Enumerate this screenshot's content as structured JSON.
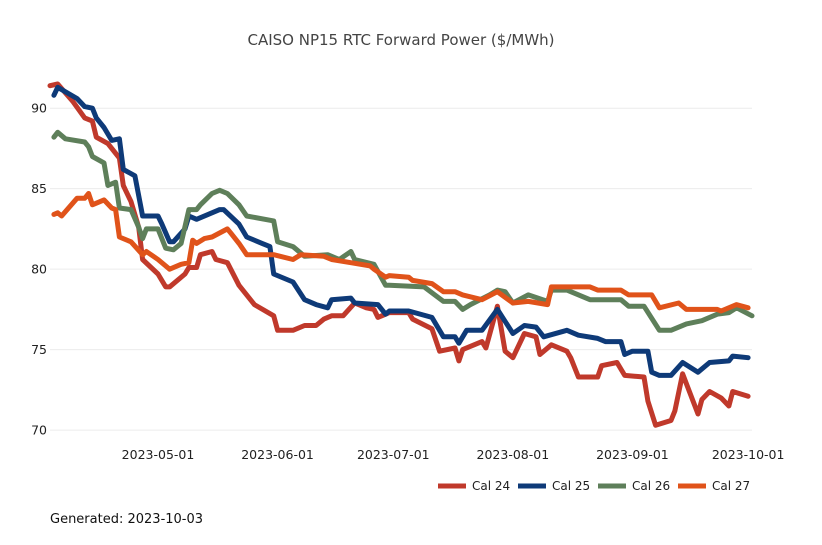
{
  "chart_data": {
    "type": "line",
    "title": "CAISO NP15 RTC Forward Power ($/MWh)",
    "xlabel": "",
    "ylabel": "",
    "xlim": [
      "2023-04-03",
      "2023-10-02"
    ],
    "ylim": [
      69.2,
      92
    ],
    "x_ticks": [
      "2023-05-01",
      "2023-06-01",
      "2023-07-01",
      "2023-08-01",
      "2023-09-01",
      "2023-10-01"
    ],
    "y_ticks": [
      70,
      75,
      80,
      85,
      90
    ],
    "grid": "horizontal",
    "legend_position": "bottom-right",
    "series": [
      {
        "name": "Cal 24",
        "color": "#c0392b",
        "points": [
          [
            "2023-04-03",
            91.4
          ],
          [
            "2023-04-05",
            91.5
          ],
          [
            "2023-04-09",
            90.4
          ],
          [
            "2023-04-12",
            89.4
          ],
          [
            "2023-04-14",
            89.2
          ],
          [
            "2023-04-15",
            88.2
          ],
          [
            "2023-04-18",
            87.8
          ],
          [
            "2023-04-21",
            86.9
          ],
          [
            "2023-04-22",
            85.2
          ],
          [
            "2023-04-24",
            84.2
          ],
          [
            "2023-04-26",
            82.6
          ],
          [
            "2023-04-27",
            80.6
          ],
          [
            "2023-05-01",
            79.7
          ],
          [
            "2023-05-03",
            78.9
          ],
          [
            "2023-05-04",
            78.9
          ],
          [
            "2023-05-08",
            79.7
          ],
          [
            "2023-05-09",
            80.1
          ],
          [
            "2023-05-11",
            80.1
          ],
          [
            "2023-05-12",
            80.9
          ],
          [
            "2023-05-15",
            81.1
          ],
          [
            "2023-05-16",
            80.6
          ],
          [
            "2023-05-19",
            80.4
          ],
          [
            "2023-05-22",
            79.0
          ],
          [
            "2023-05-26",
            77.8
          ],
          [
            "2023-05-31",
            77.1
          ],
          [
            "2023-06-01",
            76.2
          ],
          [
            "2023-06-05",
            76.2
          ],
          [
            "2023-06-08",
            76.5
          ],
          [
            "2023-06-11",
            76.5
          ],
          [
            "2023-06-13",
            76.9
          ],
          [
            "2023-06-15",
            77.1
          ],
          [
            "2023-06-18",
            77.1
          ],
          [
            "2023-06-21",
            77.9
          ],
          [
            "2023-06-24",
            77.6
          ],
          [
            "2023-06-26",
            77.5
          ],
          [
            "2023-06-27",
            77.0
          ],
          [
            "2023-06-30",
            77.3
          ],
          [
            "2023-07-05",
            77.3
          ],
          [
            "2023-07-06",
            76.9
          ],
          [
            "2023-07-11",
            76.3
          ],
          [
            "2023-07-13",
            74.9
          ],
          [
            "2023-07-17",
            75.1
          ],
          [
            "2023-07-18",
            74.3
          ],
          [
            "2023-07-19",
            75.0
          ],
          [
            "2023-07-24",
            75.5
          ],
          [
            "2023-07-25",
            75.1
          ],
          [
            "2023-07-28",
            77.7
          ],
          [
            "2023-07-30",
            74.9
          ],
          [
            "2023-08-01",
            74.5
          ],
          [
            "2023-08-04",
            76.0
          ],
          [
            "2023-08-07",
            75.8
          ],
          [
            "2023-08-08",
            74.7
          ],
          [
            "2023-08-11",
            75.3
          ],
          [
            "2023-08-15",
            74.9
          ],
          [
            "2023-08-16",
            74.5
          ],
          [
            "2023-08-18",
            73.3
          ],
          [
            "2023-08-23",
            73.3
          ],
          [
            "2023-08-24",
            74.0
          ],
          [
            "2023-08-28",
            74.2
          ],
          [
            "2023-08-30",
            73.4
          ],
          [
            "2023-09-04",
            73.3
          ],
          [
            "2023-09-05",
            71.8
          ],
          [
            "2023-09-07",
            70.3
          ],
          [
            "2023-09-11",
            70.6
          ],
          [
            "2023-09-12",
            71.2
          ],
          [
            "2023-09-14",
            73.5
          ],
          [
            "2023-09-18",
            71.0
          ],
          [
            "2023-09-19",
            71.9
          ],
          [
            "2023-09-21",
            72.4
          ],
          [
            "2023-09-24",
            72.0
          ],
          [
            "2023-09-26",
            71.5
          ],
          [
            "2023-09-27",
            72.4
          ],
          [
            "2023-10-01",
            72.1
          ]
        ]
      },
      {
        "name": "Cal 25",
        "color": "#0e3a78",
        "points": [
          [
            "2023-04-04",
            90.8
          ],
          [
            "2023-04-05",
            91.3
          ],
          [
            "2023-04-10",
            90.6
          ],
          [
            "2023-04-12",
            90.1
          ],
          [
            "2023-04-14",
            90.0
          ],
          [
            "2023-04-15",
            89.4
          ],
          [
            "2023-04-17",
            88.8
          ],
          [
            "2023-04-19",
            88.0
          ],
          [
            "2023-04-21",
            88.1
          ],
          [
            "2023-04-22",
            86.2
          ],
          [
            "2023-04-25",
            85.8
          ],
          [
            "2023-04-27",
            83.3
          ],
          [
            "2023-05-01",
            83.3
          ],
          [
            "2023-05-02",
            82.8
          ],
          [
            "2023-05-04",
            81.7
          ],
          [
            "2023-05-05",
            81.7
          ],
          [
            "2023-05-08",
            82.5
          ],
          [
            "2023-05-09",
            83.3
          ],
          [
            "2023-05-11",
            83.1
          ],
          [
            "2023-05-17",
            83.7
          ],
          [
            "2023-05-18",
            83.7
          ],
          [
            "2023-05-22",
            82.8
          ],
          [
            "2023-05-24",
            82.0
          ],
          [
            "2023-05-28",
            81.6
          ],
          [
            "2023-05-30",
            81.4
          ],
          [
            "2023-05-31",
            79.7
          ],
          [
            "2023-06-05",
            79.2
          ],
          [
            "2023-06-08",
            78.1
          ],
          [
            "2023-06-11",
            77.8
          ],
          [
            "2023-06-14",
            77.6
          ],
          [
            "2023-06-15",
            78.1
          ],
          [
            "2023-06-20",
            78.2
          ],
          [
            "2023-06-21",
            77.9
          ],
          [
            "2023-06-27",
            77.8
          ],
          [
            "2023-06-29",
            77.2
          ],
          [
            "2023-06-30",
            77.4
          ],
          [
            "2023-07-05",
            77.4
          ],
          [
            "2023-07-11",
            77.0
          ],
          [
            "2023-07-14",
            75.8
          ],
          [
            "2023-07-17",
            75.8
          ],
          [
            "2023-07-18",
            75.4
          ],
          [
            "2023-07-20",
            76.2
          ],
          [
            "2023-07-24",
            76.2
          ],
          [
            "2023-07-28",
            77.5
          ],
          [
            "2023-08-01",
            76.0
          ],
          [
            "2023-08-04",
            76.5
          ],
          [
            "2023-08-07",
            76.4
          ],
          [
            "2023-08-09",
            75.8
          ],
          [
            "2023-08-15",
            76.2
          ],
          [
            "2023-08-18",
            75.9
          ],
          [
            "2023-08-23",
            75.7
          ],
          [
            "2023-08-25",
            75.5
          ],
          [
            "2023-08-29",
            75.5
          ],
          [
            "2023-08-30",
            74.7
          ],
          [
            "2023-09-01",
            74.9
          ],
          [
            "2023-09-05",
            74.9
          ],
          [
            "2023-09-06",
            73.6
          ],
          [
            "2023-09-08",
            73.4
          ],
          [
            "2023-09-11",
            73.4
          ],
          [
            "2023-09-14",
            74.2
          ],
          [
            "2023-09-18",
            73.6
          ],
          [
            "2023-09-21",
            74.2
          ],
          [
            "2023-09-26",
            74.3
          ],
          [
            "2023-09-27",
            74.6
          ],
          [
            "2023-10-01",
            74.5
          ]
        ]
      },
      {
        "name": "Cal 26",
        "color": "#5e7f5a",
        "points": [
          [
            "2023-04-04",
            88.2
          ],
          [
            "2023-04-05",
            88.5
          ],
          [
            "2023-04-07",
            88.1
          ],
          [
            "2023-04-12",
            87.9
          ],
          [
            "2023-04-13",
            87.6
          ],
          [
            "2023-04-14",
            87.0
          ],
          [
            "2023-04-17",
            86.6
          ],
          [
            "2023-04-18",
            85.2
          ],
          [
            "2023-04-20",
            85.4
          ],
          [
            "2023-04-21",
            83.8
          ],
          [
            "2023-04-24",
            83.7
          ],
          [
            "2023-04-26",
            82.6
          ],
          [
            "2023-04-27",
            81.9
          ],
          [
            "2023-04-28",
            82.5
          ],
          [
            "2023-05-01",
            82.5
          ],
          [
            "2023-05-03",
            81.3
          ],
          [
            "2023-05-05",
            81.2
          ],
          [
            "2023-05-07",
            81.6
          ],
          [
            "2023-05-09",
            83.7
          ],
          [
            "2023-05-11",
            83.7
          ],
          [
            "2023-05-12",
            84.0
          ],
          [
            "2023-05-15",
            84.7
          ],
          [
            "2023-05-17",
            84.9
          ],
          [
            "2023-05-19",
            84.7
          ],
          [
            "2023-05-22",
            84.0
          ],
          [
            "2023-05-24",
            83.3
          ],
          [
            "2023-05-31",
            83.0
          ],
          [
            "2023-06-01",
            81.7
          ],
          [
            "2023-06-05",
            81.4
          ],
          [
            "2023-06-08",
            80.8
          ],
          [
            "2023-06-14",
            80.9
          ],
          [
            "2023-06-17",
            80.6
          ],
          [
            "2023-06-20",
            81.1
          ],
          [
            "2023-06-21",
            80.6
          ],
          [
            "2023-06-26",
            80.3
          ],
          [
            "2023-06-29",
            79.0
          ],
          [
            "2023-06-30",
            79.0
          ],
          [
            "2023-07-09",
            78.9
          ],
          [
            "2023-07-14",
            78.0
          ],
          [
            "2023-07-17",
            78.0
          ],
          [
            "2023-07-19",
            77.5
          ],
          [
            "2023-07-21",
            77.8
          ],
          [
            "2023-07-26",
            78.4
          ],
          [
            "2023-07-28",
            78.7
          ],
          [
            "2023-07-30",
            78.6
          ],
          [
            "2023-08-01",
            77.9
          ],
          [
            "2023-08-05",
            78.4
          ],
          [
            "2023-08-10",
            78.0
          ],
          [
            "2023-08-11",
            78.7
          ],
          [
            "2023-08-15",
            78.7
          ],
          [
            "2023-08-21",
            78.1
          ],
          [
            "2023-08-29",
            78.1
          ],
          [
            "2023-08-31",
            77.7
          ],
          [
            "2023-09-04",
            77.7
          ],
          [
            "2023-09-08",
            76.2
          ],
          [
            "2023-09-11",
            76.2
          ],
          [
            "2023-09-15",
            76.6
          ],
          [
            "2023-09-19",
            76.8
          ],
          [
            "2023-09-23",
            77.2
          ],
          [
            "2023-09-26",
            77.3
          ],
          [
            "2023-09-28",
            77.6
          ],
          [
            "2023-10-02",
            77.1
          ]
        ]
      },
      {
        "name": "Cal 27",
        "color": "#e0531a",
        "points": [
          [
            "2023-04-04",
            83.4
          ],
          [
            "2023-04-05",
            83.5
          ],
          [
            "2023-04-06",
            83.3
          ],
          [
            "2023-04-10",
            84.4
          ],
          [
            "2023-04-12",
            84.4
          ],
          [
            "2023-04-13",
            84.7
          ],
          [
            "2023-04-14",
            84.0
          ],
          [
            "2023-04-17",
            84.3
          ],
          [
            "2023-04-19",
            83.8
          ],
          [
            "2023-04-20",
            83.7
          ],
          [
            "2023-04-21",
            82.0
          ],
          [
            "2023-04-24",
            81.7
          ],
          [
            "2023-04-27",
            80.9
          ],
          [
            "2023-04-28",
            81.1
          ],
          [
            "2023-05-01",
            80.6
          ],
          [
            "2023-05-04",
            80.0
          ],
          [
            "2023-05-07",
            80.3
          ],
          [
            "2023-05-09",
            80.4
          ],
          [
            "2023-05-10",
            81.8
          ],
          [
            "2023-05-11",
            81.6
          ],
          [
            "2023-05-13",
            81.9
          ],
          [
            "2023-05-15",
            82.0
          ],
          [
            "2023-05-19",
            82.5
          ],
          [
            "2023-05-20",
            82.2
          ],
          [
            "2023-05-22",
            81.6
          ],
          [
            "2023-05-24",
            80.9
          ],
          [
            "2023-05-31",
            80.9
          ],
          [
            "2023-06-05",
            80.6
          ],
          [
            "2023-06-07",
            80.9
          ],
          [
            "2023-06-13",
            80.8
          ],
          [
            "2023-06-15",
            80.6
          ],
          [
            "2023-06-20",
            80.4
          ],
          [
            "2023-06-25",
            80.2
          ],
          [
            "2023-06-26",
            80.0
          ],
          [
            "2023-06-29",
            79.5
          ],
          [
            "2023-06-30",
            79.6
          ],
          [
            "2023-07-05",
            79.5
          ],
          [
            "2023-07-06",
            79.3
          ],
          [
            "2023-07-11",
            79.1
          ],
          [
            "2023-07-14",
            78.6
          ],
          [
            "2023-07-17",
            78.6
          ],
          [
            "2023-07-19",
            78.4
          ],
          [
            "2023-07-24",
            78.1
          ],
          [
            "2023-07-28",
            78.6
          ],
          [
            "2023-08-01",
            77.9
          ],
          [
            "2023-08-05",
            78.0
          ],
          [
            "2023-08-10",
            77.8
          ],
          [
            "2023-08-11",
            78.9
          ],
          [
            "2023-08-21",
            78.9
          ],
          [
            "2023-08-23",
            78.7
          ],
          [
            "2023-08-29",
            78.7
          ],
          [
            "2023-08-31",
            78.4
          ],
          [
            "2023-09-06",
            78.4
          ],
          [
            "2023-09-08",
            77.6
          ],
          [
            "2023-09-13",
            77.9
          ],
          [
            "2023-09-15",
            77.5
          ],
          [
            "2023-09-23",
            77.5
          ],
          [
            "2023-09-24",
            77.4
          ],
          [
            "2023-09-28",
            77.8
          ],
          [
            "2023-10-01",
            77.6
          ]
        ]
      }
    ]
  },
  "footer": {
    "generated": "Generated: 2023-10-03"
  }
}
